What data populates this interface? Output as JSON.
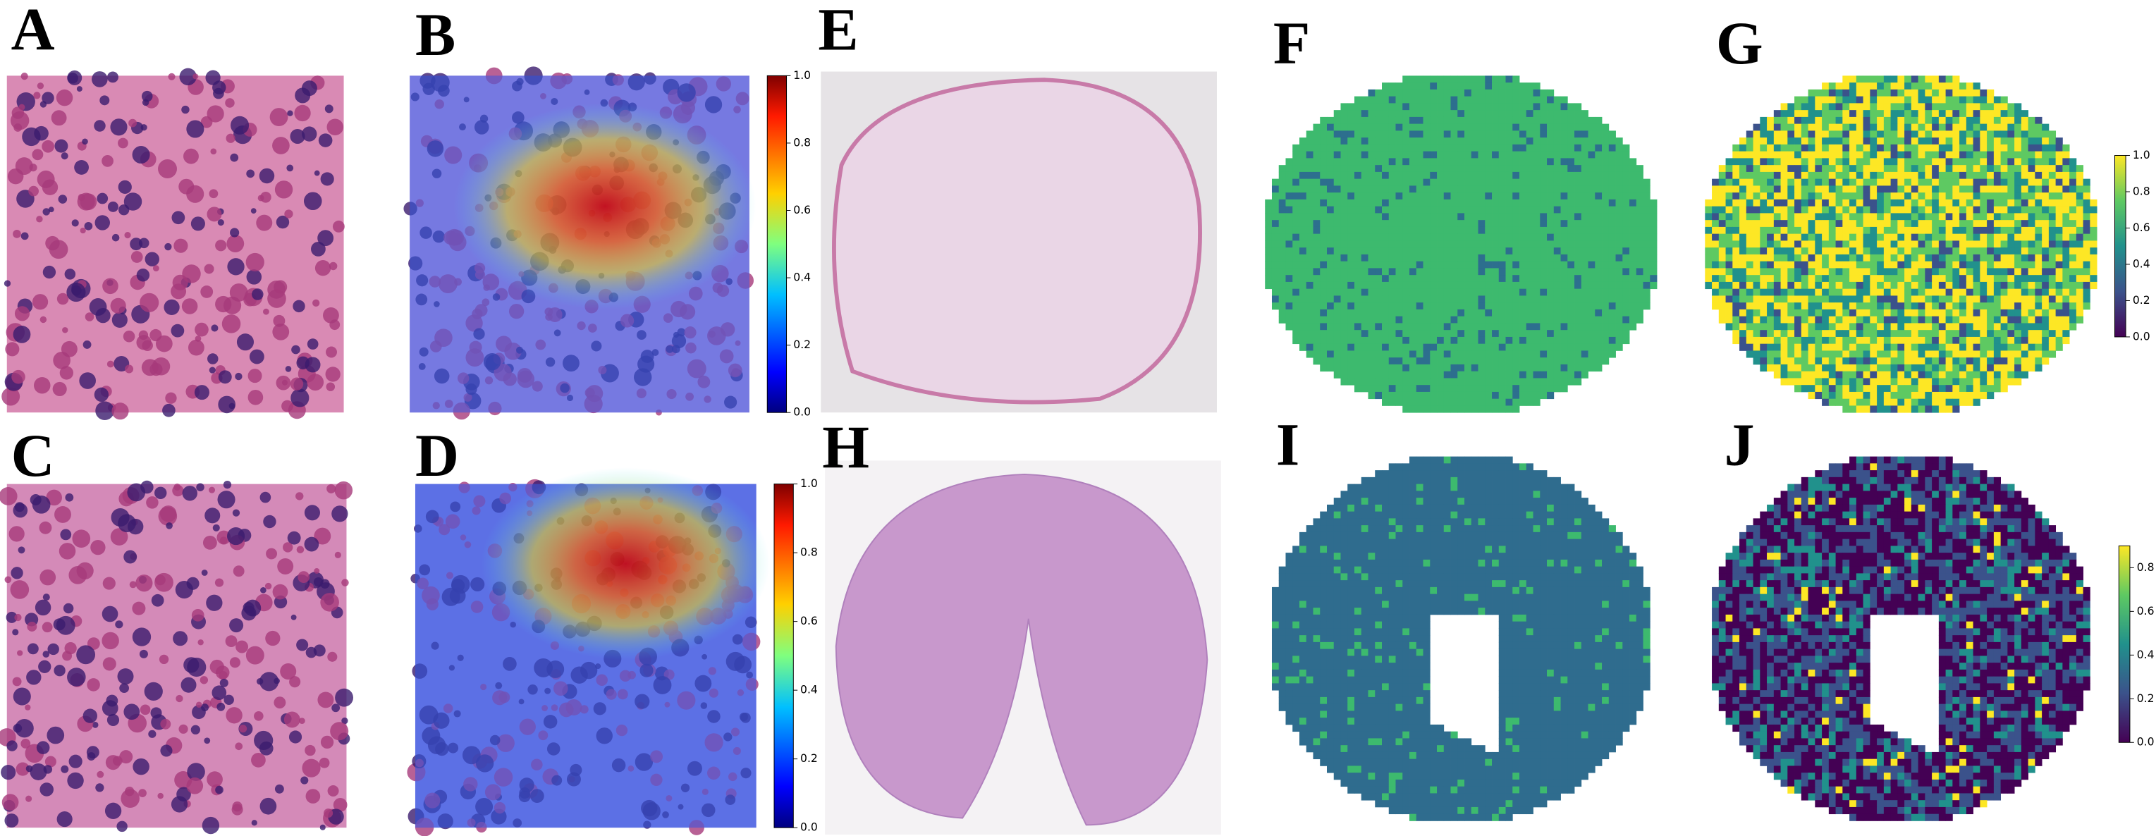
{
  "panels": [
    {
      "label": "A"
    },
    {
      "label": "B"
    },
    {
      "label": "E"
    },
    {
      "label": "F"
    },
    {
      "label": "G"
    },
    {
      "label": "C"
    },
    {
      "label": "D"
    },
    {
      "label": "H"
    },
    {
      "label": "I"
    },
    {
      "label": "J"
    }
  ],
  "colorbars": [
    {
      "colormap": "jet",
      "lim": [
        0,
        1
      ],
      "ticks": [
        {
          "value": 0,
          "label": "0.0"
        },
        {
          "value": 0.2,
          "label": "0.2"
        },
        {
          "value": 0.4,
          "label": "0.4"
        },
        {
          "value": 0.6,
          "label": "0.6"
        },
        {
          "value": 0.8,
          "label": "0.8"
        },
        {
          "value": 1,
          "label": "1.0"
        }
      ]
    },
    {
      "colormap": "jet",
      "lim": [
        0,
        1
      ],
      "ticks": [
        {
          "value": 0,
          "label": "0.0"
        },
        {
          "value": 0.2,
          "label": "0.2"
        },
        {
          "value": 0.4,
          "label": "0.4"
        },
        {
          "value": 0.6,
          "label": "0.6"
        },
        {
          "value": 0.8,
          "label": "0.8"
        },
        {
          "value": 1,
          "label": "1.0"
        }
      ]
    },
    {
      "colormap": "viridis",
      "lim": [
        0,
        1
      ],
      "ticks": [
        {
          "value": 0,
          "label": "0.0"
        },
        {
          "value": 0.2,
          "label": "0.2"
        },
        {
          "value": 0.4,
          "label": "0.4"
        },
        {
          "value": 0.6,
          "label": "0.6"
        },
        {
          "value": 0.8,
          "label": "0.8"
        },
        {
          "value": 1,
          "label": "1.0"
        }
      ]
    },
    {
      "colormap": "viridis",
      "lim": [
        0,
        0.9
      ],
      "ticks": [
        {
          "value": 0,
          "label": "0.0"
        },
        {
          "value": 0.2,
          "label": "0.2"
        },
        {
          "value": 0.4,
          "label": "0.4"
        },
        {
          "value": 0.6,
          "label": "0.6"
        },
        {
          "value": 0.8,
          "label": "0.8"
        }
      ]
    }
  ]
}
